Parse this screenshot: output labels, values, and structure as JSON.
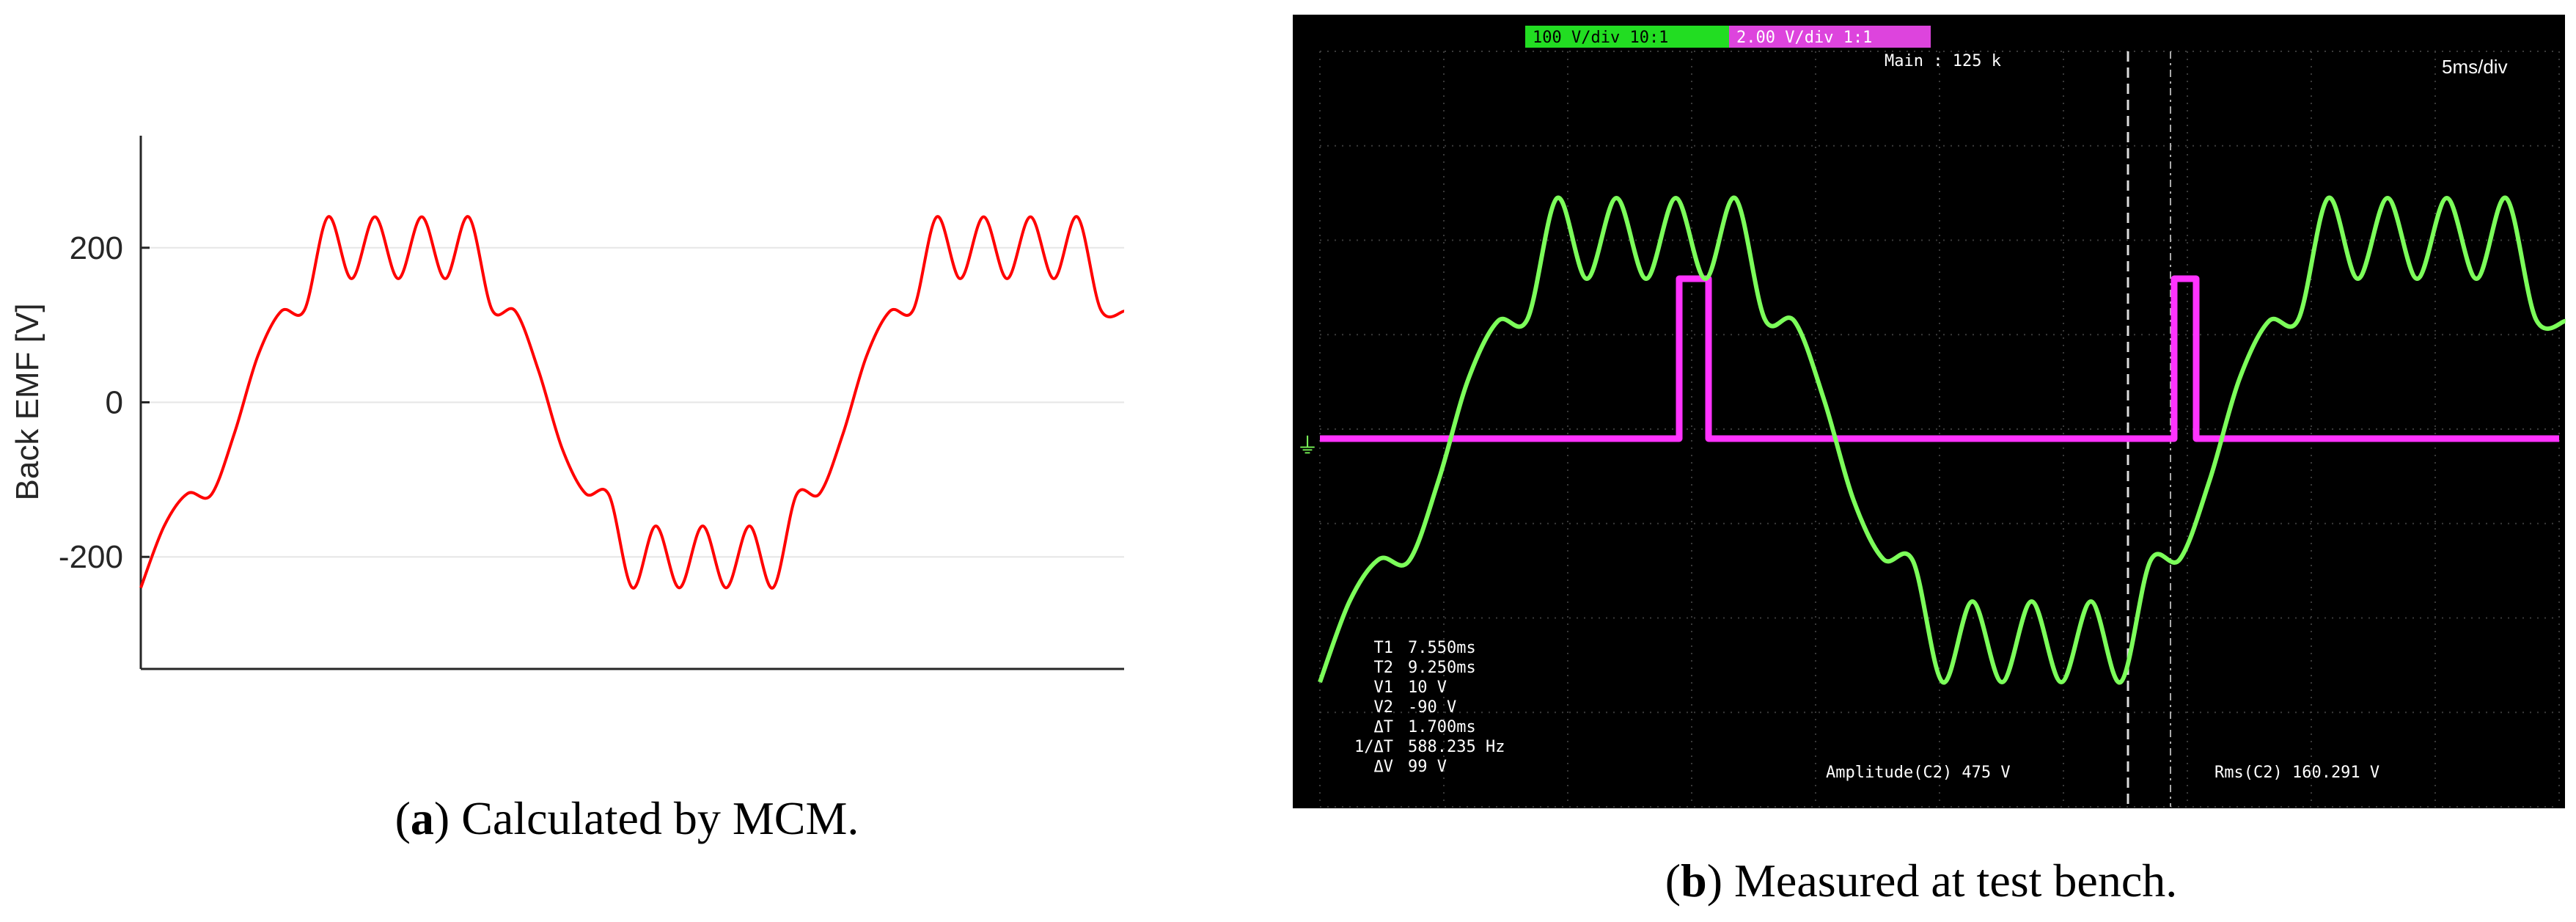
{
  "chart_data": [
    {
      "type": "line",
      "ylabel": "Back EMF [V]",
      "yticks": [
        "200",
        "0",
        "-200"
      ],
      "ylim": [
        -345,
        345
      ],
      "grid": true,
      "caption": {
        "letter": "a",
        "text": ") Calculated by MCM.",
        "open": "("
      },
      "series": [
        {
          "color": "#ff0000",
          "x": [
            0,
            0.01,
            0.02,
            0.03,
            0.04,
            0.05,
            0.06,
            0.07,
            0.08,
            0.09,
            0.1,
            0.11,
            0.12,
            0.13,
            0.14,
            0.15,
            0.16,
            0.17,
            0.18,
            0.19,
            0.2,
            0.21,
            0.22,
            0.23,
            0.24,
            0.25,
            0.26,
            0.27,
            0.28,
            0.29,
            0.3,
            0.31,
            0.32,
            0.33,
            0.34,
            0.35,
            0.36,
            0.37,
            0.38,
            0.39,
            0.4,
            0.41,
            0.42
          ],
          "y": [
            -240,
            -160,
            -118,
            -120,
            -40,
            60,
            118,
            120,
            240,
            160,
            240,
            160,
            240,
            160,
            240,
            120,
            118,
            40,
            -60,
            -118,
            -120,
            -240,
            -160,
            -240,
            -160,
            -240,
            -160,
            -240,
            -120,
            -118,
            -40,
            60,
            118,
            120,
            240,
            160,
            240,
            160,
            240,
            160,
            240,
            120,
            118
          ]
        }
      ]
    },
    {
      "type": "line",
      "caption": {
        "letter": "b",
        "text": ") Measured at test bench.",
        "open": "("
      },
      "header": {
        "ch2": "100 V/div 10:1",
        "ch3": "2.00 V/div 1:1",
        "main": "Main : 125 k",
        "timebase": "5ms/div"
      },
      "readouts": [
        {
          "k": "T1",
          "v": "7.550ms"
        },
        {
          "k": "T2",
          "v": "9.250ms"
        },
        {
          "k": "V1",
          "v": "10 V"
        },
        {
          "k": "V2",
          "v": "-90 V"
        },
        {
          "k": "ΔT",
          "v": "1.700ms"
        },
        {
          "k": "1/ΔT",
          "v": "588.235 Hz"
        },
        {
          "k": "ΔV",
          "v": "99 V"
        }
      ],
      "amplitude": "Amplitude(C2)  475 V",
      "rms": "Rms(C2)  160.291 V",
      "colors": {
        "back_emf": "#7cff5a",
        "hall": "#ff33ff",
        "grid": "#3a3a3a",
        "bg": "#000000",
        "ch2_tag": "#22dd22",
        "ch3_tag": "#dd44dd"
      }
    }
  ]
}
